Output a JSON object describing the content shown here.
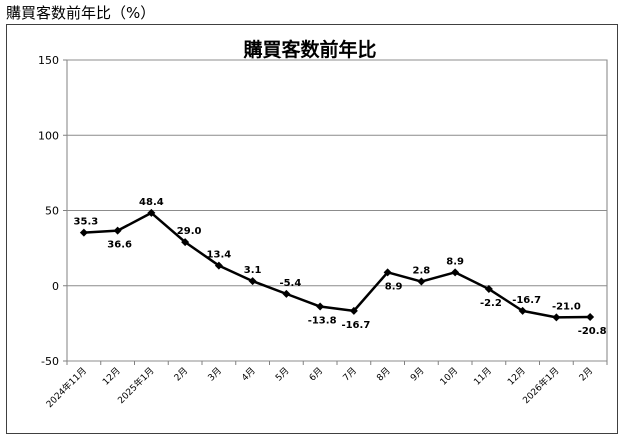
{
  "page": {
    "caption": "購買客数前年比（%）"
  },
  "chart_data": {
    "type": "line",
    "title": "購買客数前年比",
    "xlabel": "",
    "ylabel": "",
    "ylim": [
      -50,
      150
    ],
    "yticks": [
      150,
      100,
      50,
      0,
      -50
    ],
    "grid": true,
    "categories": [
      "2024年11月",
      "12月",
      "2025年1月",
      "2月",
      "3月",
      "4月",
      "5月",
      "6月",
      "7月",
      "8月",
      "9月",
      "10月",
      "11月",
      "12月",
      "2026年1月",
      "2月"
    ],
    "series": [
      {
        "values": [
          35.3,
          36.6,
          48.4,
          29.0,
          13.4,
          3.1,
          -5.4,
          -13.8,
          -16.7,
          8.9,
          2.8,
          8.9,
          -2.2,
          -16.7,
          -21.0,
          -20.8
        ],
        "labels": [
          "35.3",
          "36.6",
          "48.4",
          "29.0",
          "13.4",
          "3.1",
          "-5.4",
          "-13.8",
          "-16.7",
          "8.9",
          "2.8",
          "8.9",
          "-2.2",
          "-16.7",
          "-21.0",
          "-20.8"
        ],
        "color": "#000000"
      }
    ]
  }
}
